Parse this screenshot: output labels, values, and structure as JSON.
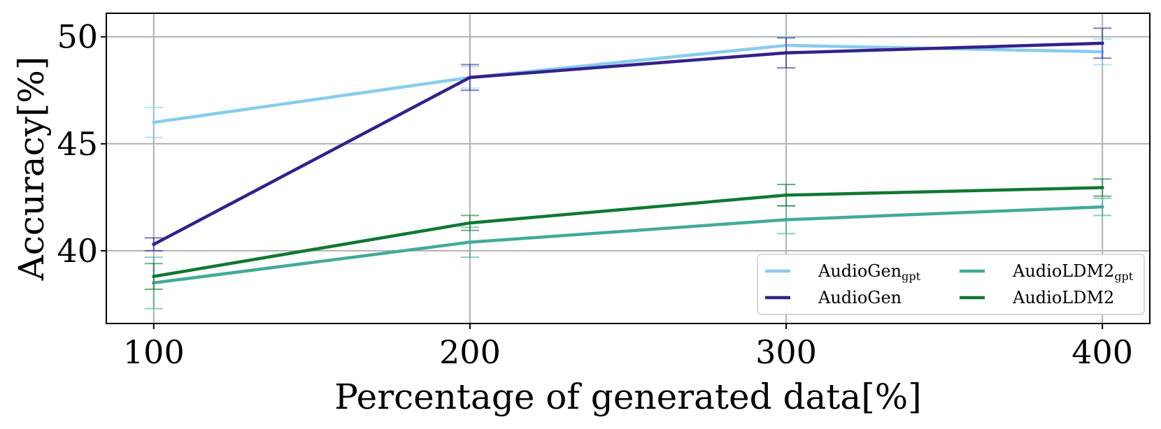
{
  "chart_data": {
    "type": "line",
    "title": "",
    "xlabel": "Percentage of generated data[%]",
    "ylabel": "Accuracy[%]",
    "x": [
      100,
      200,
      300,
      400
    ],
    "xlim": [
      85,
      415
    ],
    "ylim": [
      36.6,
      51.1
    ],
    "xticks": [
      100,
      200,
      300,
      400
    ],
    "yticks": [
      40,
      45,
      50
    ],
    "grid": true,
    "legend_position": "lower-right",
    "legend_columns": 2,
    "series": [
      {
        "name": "AudioGen",
        "name_sub": "gpt",
        "color": "#88ccee",
        "values": [
          46.0,
          48.1,
          49.6,
          49.3
        ],
        "errors": [
          0.7,
          0.5,
          0.4,
          0.6
        ]
      },
      {
        "name": "AudioGen",
        "name_sub": "",
        "color": "#332288",
        "values": [
          40.3,
          48.1,
          49.25,
          49.7
        ],
        "errors": [
          0.3,
          0.6,
          0.7,
          0.7
        ]
      },
      {
        "name": "AudioLDM2",
        "name_sub": "gpt",
        "color": "#44aa99",
        "values": [
          38.5,
          40.4,
          41.45,
          42.05
        ],
        "errors": [
          1.2,
          0.7,
          0.65,
          0.4
        ]
      },
      {
        "name": "AudioLDM2",
        "name_sub": "",
        "color": "#117733",
        "values": [
          38.8,
          41.3,
          42.6,
          42.95
        ],
        "errors": [
          0.6,
          0.35,
          0.5,
          0.4
        ]
      }
    ]
  }
}
